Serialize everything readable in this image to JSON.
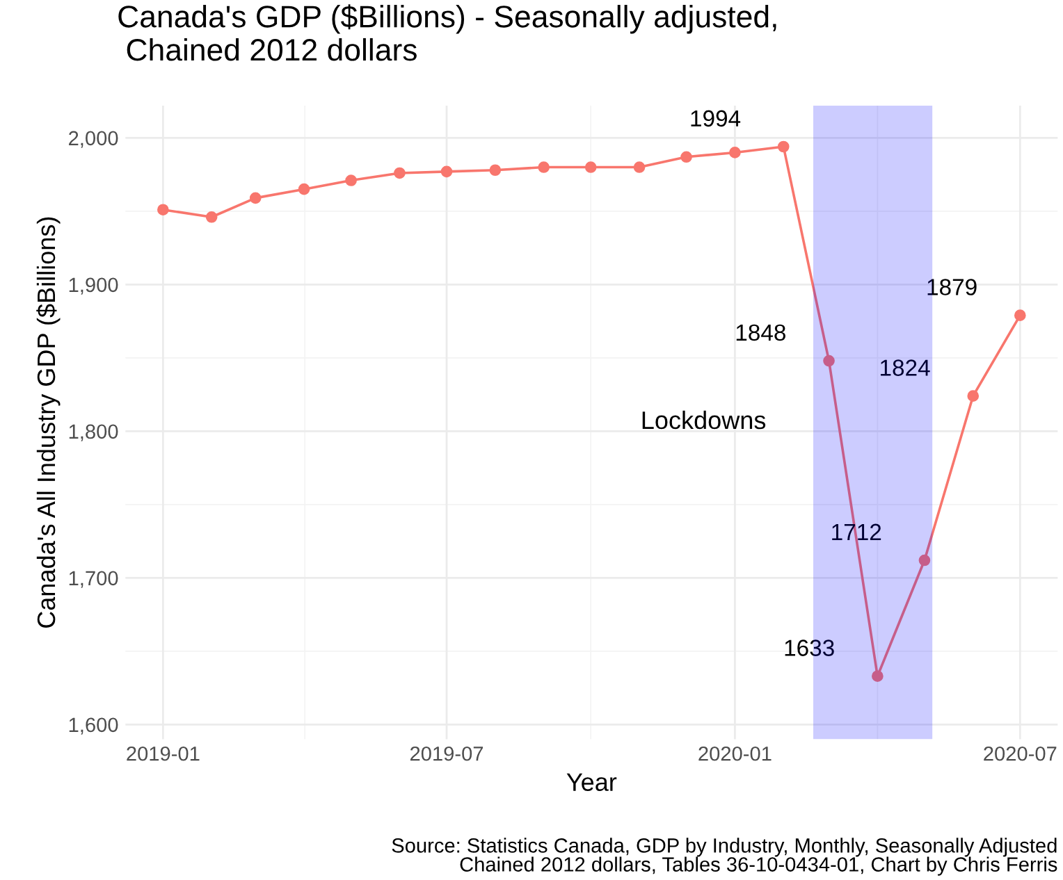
{
  "chart_data": {
    "type": "line",
    "title": "Canada's GDP ($Billions) - Seasonally adjusted,\n Chained 2012 dollars",
    "xlabel": "Year",
    "ylabel": "Canada's All Industry GDP ($Billions)",
    "x": [
      "2019-01",
      "2019-02",
      "2019-03",
      "2019-04",
      "2019-05",
      "2019-06",
      "2019-07",
      "2019-08",
      "2019-09",
      "2019-10",
      "2019-11",
      "2019-12",
      "2020-01",
      "2020-02",
      "2020-03",
      "2020-04",
      "2020-05",
      "2020-06",
      "2020-07"
    ],
    "series": [
      {
        "color": "#f8766d",
        "values": [
          1951,
          1946,
          1959,
          1965,
          1971,
          1976,
          1977,
          1978,
          1980,
          1980,
          1980,
          1987,
          1990,
          1994,
          1848,
          1633,
          1712,
          1824,
          1879
        ],
        "value_labels": [
          null,
          null,
          null,
          null,
          null,
          null,
          null,
          null,
          null,
          null,
          null,
          null,
          null,
          "1994",
          "1848",
          "1633",
          "1712",
          "1824",
          "1879"
        ]
      }
    ],
    "marker": "circle",
    "line_style": "solid",
    "xlim": [
      "2018-12-08",
      "2020-07-25"
    ],
    "xticks": [
      "2019-01",
      "2019-07",
      "2020-01",
      "2020-07"
    ],
    "ylim": [
      1590,
      2022
    ],
    "yticks": [
      {
        "value": 1600,
        "label": "1,600"
      },
      {
        "value": 1700,
        "label": "1,700"
      },
      {
        "value": 1800,
        "label": "1,800"
      },
      {
        "value": 1900,
        "label": "1,900"
      },
      {
        "value": 2000,
        "label": "2,000"
      }
    ],
    "bands": [
      {
        "axis": "x",
        "from": "2020-02-20",
        "to": "2020-05-06",
        "label": "Lockdowns",
        "color": "#0000ff"
      }
    ],
    "grid": true,
    "legend": false,
    "annotations": [
      "Source: Statistics Canada, GDP by Industry, Monthly, Seasonally Adjusted\nChained 2012 dollars, Tables 36-10-0434-01, Chart by Chris Ferris"
    ]
  }
}
